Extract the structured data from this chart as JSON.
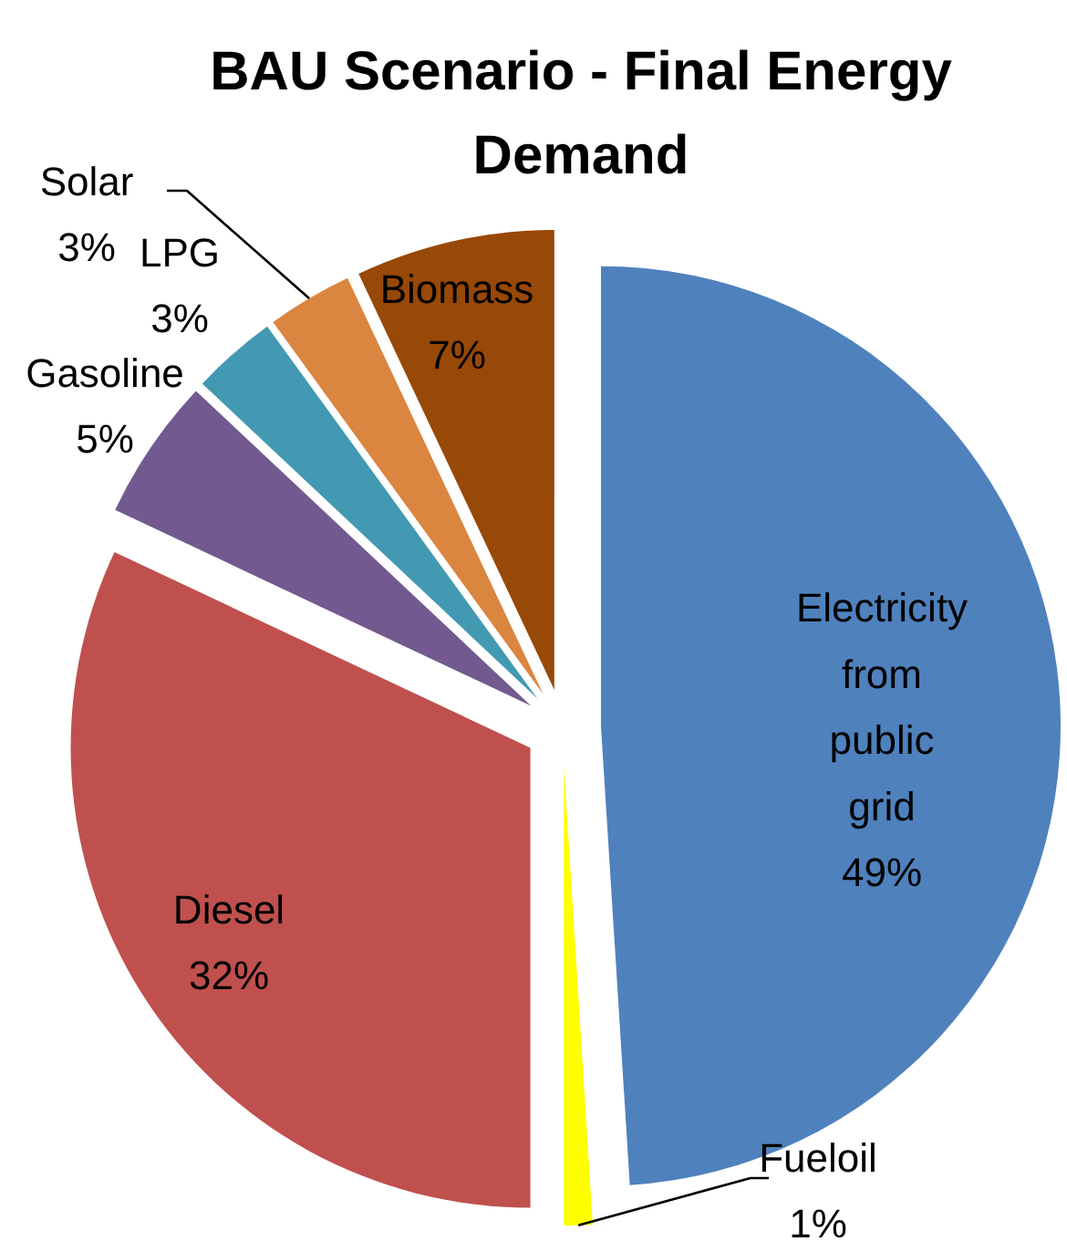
{
  "chart_data": {
    "type": "pie",
    "title": "BAU Scenario - Final Energy Demand",
    "categories": [
      "Electricity from public grid",
      "Fueloil",
      "Diesel",
      "Gasoline",
      "LPG",
      "Solar",
      "Biomass"
    ],
    "values": [
      49,
      1,
      32,
      5,
      3,
      3,
      7
    ],
    "colors": [
      "#4f81bd",
      "#ffff00",
      "#c0504d",
      "#72598f",
      "#4299b1",
      "#da8540",
      "#984807"
    ],
    "value_labels": [
      "49%",
      "1%",
      "32%",
      "5%",
      "3%",
      "3%",
      "7%"
    ]
  }
}
